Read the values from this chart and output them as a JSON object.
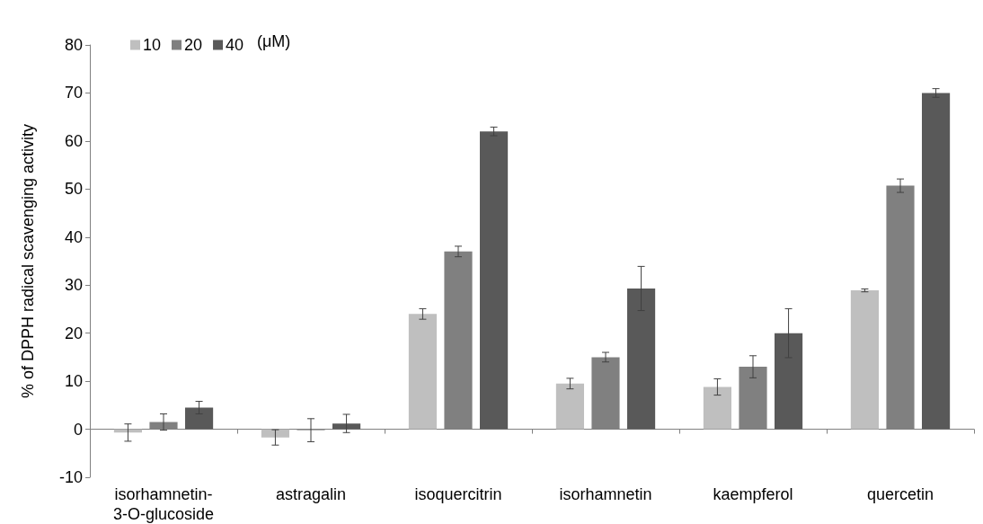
{
  "chart_data": {
    "type": "bar",
    "ylabel": "% of DPPH radical scavenging activity",
    "legend_title": "(μM)",
    "categories": [
      "isorhamnetin-\n3-O-glucoside",
      "astragalin",
      "isoquercitrin",
      "isorhamnetin",
      "kaempferol",
      "quercetin"
    ],
    "series": [
      {
        "name": "10",
        "color": "#bfbfbf",
        "values": [
          -0.7,
          -1.7,
          24,
          9.5,
          8.8,
          28.9
        ],
        "errors": [
          1.8,
          1.6,
          1.1,
          1.1,
          1.7,
          0.3
        ]
      },
      {
        "name": "20",
        "color": "#808080",
        "values": [
          1.5,
          -0.2,
          37,
          15,
          13,
          50.7
        ],
        "errors": [
          1.7,
          2.4,
          1.1,
          1.0,
          2.3,
          1.4
        ]
      },
      {
        "name": "40",
        "color": "#595959",
        "values": [
          4.5,
          1.2,
          62,
          29.3,
          20,
          70
        ],
        "errors": [
          1.3,
          1.9,
          0.9,
          4.6,
          5.1,
          0.9
        ]
      }
    ],
    "ylim": [
      -10,
      80
    ],
    "yticks": [
      -10,
      0,
      10,
      20,
      30,
      40,
      50,
      60,
      70,
      80
    ],
    "legend": "top left"
  }
}
